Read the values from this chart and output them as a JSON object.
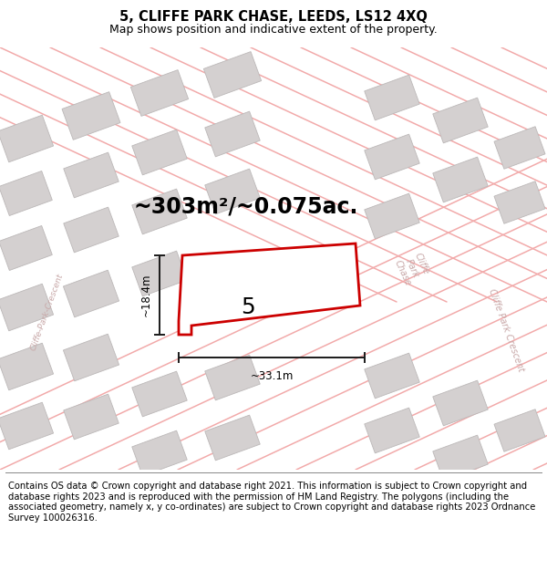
{
  "title_line1": "5, CLIFFE PARK CHASE, LEEDS, LS12 4XQ",
  "title_line2": "Map shows position and indicative extent of the property.",
  "area_text": "~303m²/~0.075ac.",
  "plot_number": "5",
  "dim_width": "~33.1m",
  "dim_height": "~18.4m",
  "footer_text": "Contains OS data © Crown copyright and database right 2021. This information is subject to Crown copyright and database rights 2023 and is reproduced with the permission of HM Land Registry. The polygons (including the associated geometry, namely x, y co-ordinates) are subject to Crown copyright and database rights 2023 Ordnance Survey 100026316.",
  "map_bg": "#f7f4f4",
  "road_color": "#f2aaaa",
  "building_color": "#d4d0d0",
  "building_edge": "#bcb8b8",
  "plot_edge": "#cc0000",
  "dim_color": "#1a1a1a",
  "road_label_color": "#c8a8a8",
  "title_fontsize": 10.5,
  "subtitle_fontsize": 9,
  "area_fontsize": 17,
  "plot_num_fontsize": 18,
  "footer_fontsize": 7.2,
  "dim_fontsize": 8.5
}
